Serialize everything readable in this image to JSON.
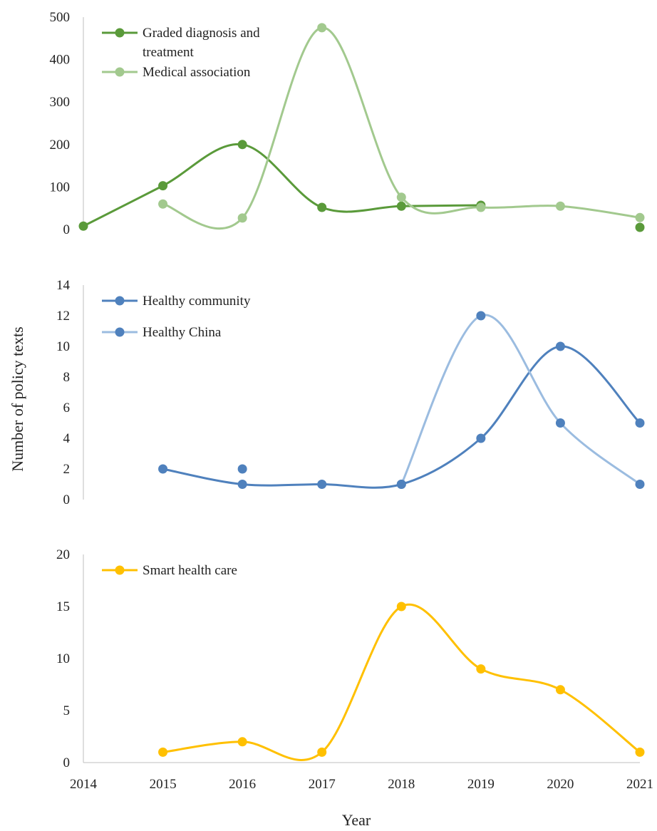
{
  "chart_data": {
    "type": "line",
    "ylabel": "Number of policy texts",
    "xlabel": "Year",
    "x": [
      2014,
      2015,
      2016,
      2017,
      2018,
      2019,
      2020,
      2021
    ],
    "panels": [
      {
        "type": "line",
        "ylim": [
          0,
          500
        ],
        "yticks": [
          0,
          100,
          200,
          300,
          400,
          500
        ],
        "legend_position": "top-left",
        "series": [
          {
            "name": "Graded diagnosis and treatment",
            "name_lines": [
              "Graded diagnosis and",
              "treatment"
            ],
            "color": "#5a9a3a",
            "x": [
              2014,
              2015,
              2016,
              2017,
              2018,
              2019,
              2021
            ],
            "values": [
              8,
              103,
              200,
              52,
              55,
              57,
              5
            ],
            "curve_segments": [
              [
                2014,
                2015,
                2016,
                2017,
                2018,
                2019
              ]
            ]
          },
          {
            "name": "Medical association",
            "name_lines": [
              "Medical association"
            ],
            "color": "#a2c98e",
            "x": [
              2015,
              2016,
              2017,
              2018,
              2019,
              2020,
              2021
            ],
            "values": [
              60,
              27,
              475,
              76,
              52,
              55,
              28
            ],
            "curve_segments": [
              [
                2015,
                2016,
                2017,
                2018,
                2019,
                2020,
                2021
              ]
            ]
          }
        ]
      },
      {
        "type": "line",
        "ylim": [
          0,
          14
        ],
        "yticks": [
          0,
          2,
          4,
          6,
          8,
          10,
          12,
          14
        ],
        "legend_position": "top-left",
        "series": [
          {
            "name": "Healthy community",
            "name_lines": [
              "Healthy community"
            ],
            "color": "#4f81bd",
            "x": [
              2015,
              2016,
              2017,
              2018,
              2019,
              2020,
              2021
            ],
            "values": [
              2,
              1,
              1,
              1,
              4,
              10,
              5
            ],
            "curve_segments": [
              [
                2015,
                2016,
                2017,
                2018,
                2019,
                2020,
                2021
              ]
            ]
          },
          {
            "name": "Healthy China",
            "name_lines": [
              "Healthy China"
            ],
            "color": "#9bbce0",
            "marker_color": "#4f81bd",
            "x": [
              2016,
              2018,
              2019,
              2020,
              2021
            ],
            "values": [
              2,
              1,
              12,
              5,
              1
            ],
            "curve_segments": [
              [
                2018,
                2019,
                2020,
                2021
              ]
            ]
          }
        ]
      },
      {
        "type": "line",
        "ylim": [
          0,
          20
        ],
        "yticks": [
          0,
          5,
          10,
          15,
          20
        ],
        "legend_position": "top-left",
        "series": [
          {
            "name": "Smart health care",
            "name_lines": [
              "Smart health care"
            ],
            "color": "#ffc000",
            "x": [
              2015,
              2016,
              2017,
              2018,
              2019,
              2020,
              2021
            ],
            "values": [
              1,
              2,
              1,
              15,
              9,
              7,
              1
            ],
            "curve_segments": [
              [
                2015,
                2016,
                2017,
                2018,
                2019,
                2020,
                2021
              ]
            ]
          }
        ]
      }
    ]
  }
}
